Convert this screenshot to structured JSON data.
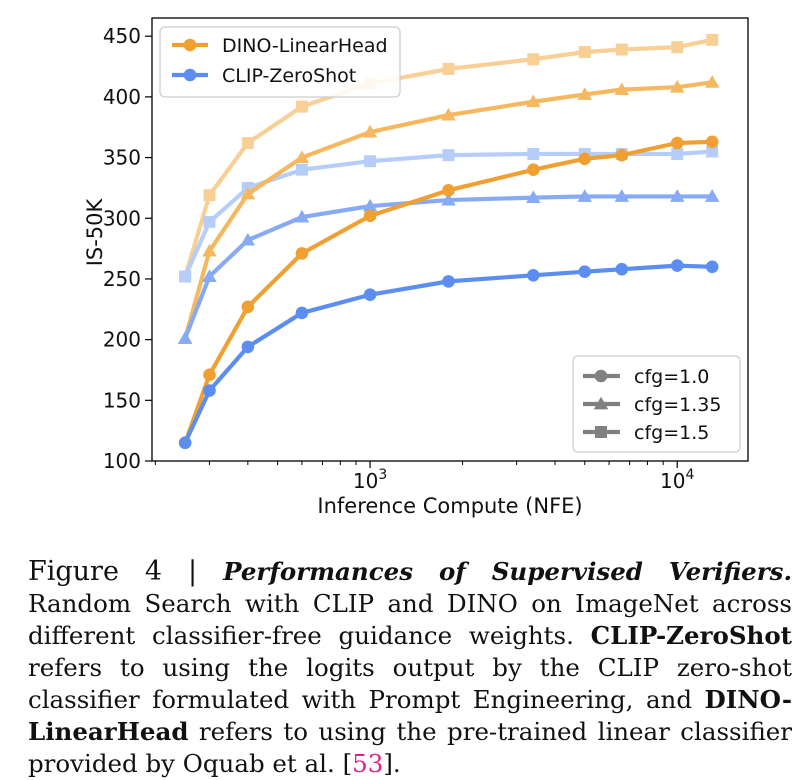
{
  "chart_data": {
    "type": "line",
    "title": "",
    "xlabel": "Inference Compute (NFE)",
    "ylabel": "IS-50K",
    "xscale": "log",
    "xlim": [
      195,
      17000
    ],
    "ylim": [
      100,
      465
    ],
    "yticks": [
      100,
      150,
      200,
      250,
      300,
      350,
      400,
      450
    ],
    "ytick_labels": [
      "100",
      "150",
      "200",
      "250",
      "300",
      "350",
      "400",
      "450"
    ],
    "xticks": [
      1000,
      10000
    ],
    "xtick_base": "10",
    "xtick_exponents": [
      "3",
      "4"
    ],
    "x": [
      250,
      300,
      400,
      600,
      1000,
      1800,
      3400,
      5000,
      6600,
      10000,
      13000
    ],
    "series": [
      {
        "name": "DINO-LinearHead, cfg=1.0",
        "method": "DINO-LinearHead",
        "cfg": "1.0",
        "marker": "circle",
        "color": "#f0a033",
        "values": [
          115,
          171,
          227,
          271,
          302,
          323,
          340,
          349,
          352,
          362,
          363
        ]
      },
      {
        "name": "DINO-LinearHead, cfg=1.35",
        "method": "DINO-LinearHead",
        "cfg": "1.35",
        "marker": "triangle",
        "color": "#f5b85e",
        "values": [
          201,
          273,
          320,
          350,
          371,
          385,
          396,
          402,
          406,
          408,
          412
        ]
      },
      {
        "name": "DINO-LinearHead, cfg=1.5",
        "method": "DINO-LinearHead",
        "cfg": "1.5",
        "marker": "square",
        "color": "#f8cf95",
        "values": [
          252,
          319,
          362,
          392,
          411,
          423,
          431,
          437,
          439,
          441,
          447
        ]
      },
      {
        "name": "CLIP-ZeroShot, cfg=1.0",
        "method": "CLIP-ZeroShot",
        "cfg": "1.0",
        "marker": "circle",
        "color": "#5b8ef0",
        "values": [
          115,
          158,
          194,
          222,
          237,
          248,
          253,
          256,
          258,
          261,
          260
        ]
      },
      {
        "name": "CLIP-ZeroShot, cfg=1.35",
        "method": "CLIP-ZeroShot",
        "cfg": "1.35",
        "marker": "triangle",
        "color": "#86abf4",
        "values": [
          201,
          252,
          282,
          301,
          310,
          315,
          317,
          318,
          318,
          318,
          318
        ]
      },
      {
        "name": "CLIP-ZeroShot, cfg=1.5",
        "method": "CLIP-ZeroShot",
        "cfg": "1.5",
        "marker": "square",
        "color": "#b5cdf8",
        "values": [
          252,
          297,
          325,
          340,
          347,
          352,
          353,
          353,
          353,
          353,
          355
        ]
      }
    ],
    "legend_methods": [
      {
        "label": "DINO-LinearHead",
        "color": "#f0a033",
        "marker": "circle"
      },
      {
        "label": "CLIP-ZeroShot",
        "color": "#5b8ef0",
        "marker": "circle"
      }
    ],
    "legend_methods_position": "top-left",
    "legend_cfg": [
      {
        "label": "cfg=1.0",
        "marker": "circle",
        "color": "#808080"
      },
      {
        "label": "cfg=1.35",
        "marker": "triangle",
        "color": "#808080"
      },
      {
        "label": "cfg=1.5",
        "marker": "square",
        "color": "#808080"
      }
    ],
    "legend_cfg_position": "bottom-right",
    "grid": false
  },
  "caption": {
    "label": "Figure 4 | ",
    "title": "Performances of Supervised Verifiers.",
    "p1": " Random Search with CLIP and DINO on ImageNet across different classifier-free guidance weights. ",
    "term1": "CLIP-ZeroShot",
    "p2": " refers to using the logits output by the CLIP zero-shot classifier formulated with Prompt Engineering, and ",
    "term2": "DINO-LinearHead",
    "p3": " refers to using the pre-trained linear classifier provided by Oquab et al. [",
    "cite": "53",
    "p4": "]."
  }
}
